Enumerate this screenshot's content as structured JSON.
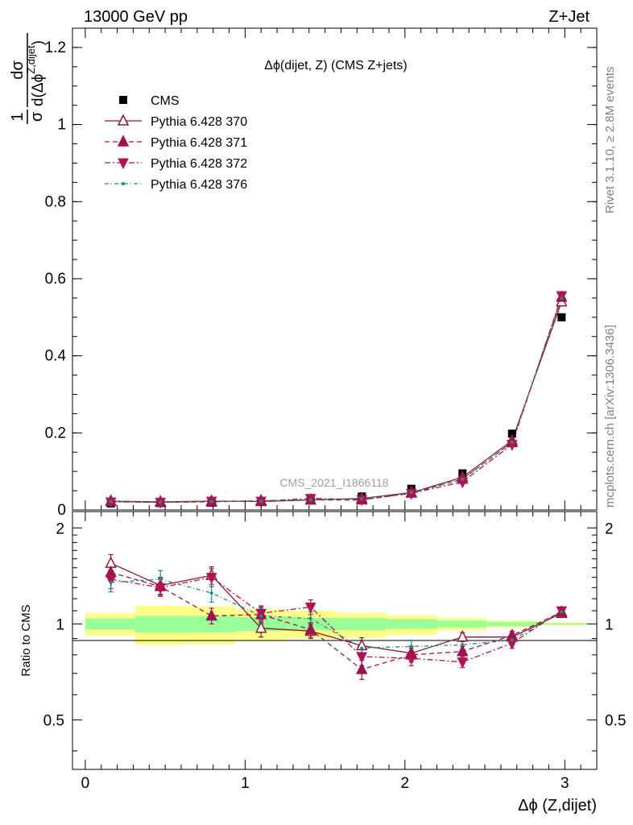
{
  "header": {
    "energy_label": "13000 GeV pp",
    "process_label": "Z+Jet"
  },
  "side_labels": {
    "rivet": "Rivet 3.1.10, ≥ 2.8M events",
    "mcplots": "mcplots.cern.ch [arXiv:1306.3436]"
  },
  "watermark": "CMS_2021_I1866118",
  "colors": {
    "cms": "#000000",
    "p370": "#8b1a2b",
    "p371": "#a0124f",
    "p372": "#b01258",
    "p376": "#1a9080",
    "band_outer": "#ffff88",
    "band_inner": "#99ff99"
  },
  "chart_data": [
    {
      "type": "line",
      "panel": "main",
      "title": "Δϕ(dijet, Z) (CMS Z+jets)",
      "xlabel": "Δϕ (Z,dijet)",
      "ylabel": "1/σ dσ/d(Δϕ^Z,dijet)",
      "xlim": [
        -0.08,
        3.2
      ],
      "ylim": [
        0,
        1.25
      ],
      "xticks": [
        "0",
        "1",
        "2",
        "3"
      ],
      "yticks": [
        "0",
        "0.2",
        "0.4",
        "0.6",
        "0.8",
        "1",
        "1.2"
      ],
      "x": [
        0.16,
        0.47,
        0.79,
        1.1,
        1.41,
        1.73,
        2.04,
        2.36,
        2.67,
        2.98
      ],
      "legend_position": "top-left",
      "series": [
        {
          "name": "CMS",
          "key": "cms",
          "marker": "square",
          "values": [
            0.017,
            0.018,
            0.019,
            0.022,
            0.027,
            0.035,
            0.055,
            0.095,
            0.198,
            0.5
          ]
        },
        {
          "name": "Pythia 6.428 370",
          "key": "p370",
          "marker": "triangle-up-open",
          "line": "solid",
          "values": [
            0.023,
            0.021,
            0.023,
            0.022,
            0.026,
            0.03,
            0.045,
            0.085,
            0.18,
            0.54
          ]
        },
        {
          "name": "Pythia 6.428 371",
          "key": "p371",
          "marker": "triangle-up",
          "line": "dashed",
          "values": [
            0.022,
            0.02,
            0.021,
            0.024,
            0.026,
            0.026,
            0.044,
            0.08,
            0.175,
            0.552
          ]
        },
        {
          "name": "Pythia 6.428 372",
          "key": "p372",
          "marker": "triangle-down",
          "line": "dashdot",
          "values": [
            0.021,
            0.02,
            0.023,
            0.023,
            0.03,
            0.027,
            0.043,
            0.073,
            0.17,
            0.556
          ]
        },
        {
          "name": "Pythia 6.428 376",
          "key": "p376",
          "marker": "dot",
          "line": "dashdot-fine",
          "values": [
            0.022,
            0.02,
            0.022,
            0.023,
            0.026,
            0.03,
            0.046,
            0.08,
            0.176,
            0.55
          ]
        }
      ]
    },
    {
      "type": "line",
      "panel": "ratio",
      "xlabel": "Δϕ (Z,dijet)",
      "ylabel": "Ratio to CMS",
      "xlim": [
        -0.08,
        3.2
      ],
      "ylim": [
        0.35,
        2.25
      ],
      "yticks": [
        "0.5",
        "1",
        "2"
      ],
      "bins": [
        [
          0,
          0.31
        ],
        [
          0.31,
          0.63
        ],
        [
          0.63,
          0.94
        ],
        [
          0.94,
          1.26
        ],
        [
          1.26,
          1.57
        ],
        [
          1.57,
          1.88
        ],
        [
          1.88,
          2.2
        ],
        [
          2.2,
          2.51
        ],
        [
          2.51,
          2.83
        ],
        [
          2.83,
          3.14
        ]
      ],
      "band_outer": [
        [
          0.92,
          1.08
        ],
        [
          0.86,
          1.14
        ],
        [
          0.865,
          1.135
        ],
        [
          0.89,
          1.11
        ],
        [
          0.9,
          1.1
        ],
        [
          0.905,
          1.085
        ],
        [
          0.925,
          1.065
        ],
        [
          0.955,
          1.045
        ],
        [
          0.975,
          1.025
        ],
        [
          0.99,
          1.01
        ]
      ],
      "band_inner": [
        [
          0.96,
          1.04
        ],
        [
          0.94,
          1.06
        ],
        [
          0.94,
          1.06
        ],
        [
          0.95,
          1.05
        ],
        [
          0.955,
          1.045
        ],
        [
          0.955,
          1.045
        ],
        [
          0.965,
          1.035
        ],
        [
          0.975,
          1.025
        ],
        [
          0.985,
          1.015
        ],
        [
          0.995,
          1.005
        ]
      ],
      "series": [
        {
          "name": "Pythia 6.428 370",
          "key": "p370",
          "values": [
            1.55,
            1.32,
            1.42,
            0.97,
            0.95,
            0.855,
            0.81,
            0.91,
            0.91,
            1.08
          ],
          "errors": [
            0.1,
            0.08,
            0.09,
            0.06,
            0.05,
            0.05,
            0.04,
            0.03,
            0.03,
            0.02
          ]
        },
        {
          "name": "Pythia 6.428 371",
          "key": "p371",
          "values": [
            1.45,
            1.31,
            1.06,
            1.07,
            0.96,
            0.72,
            0.8,
            0.82,
            0.92,
            1.09
          ],
          "errors": [
            0.09,
            0.08,
            0.06,
            0.06,
            0.05,
            0.05,
            0.04,
            0.03,
            0.03,
            0.02
          ]
        },
        {
          "name": "Pythia 6.428 372",
          "key": "p372",
          "values": [
            1.38,
            1.3,
            1.4,
            1.08,
            1.13,
            0.79,
            0.78,
            0.76,
            0.87,
            1.1
          ],
          "errors": [
            0.09,
            0.08,
            0.09,
            0.06,
            0.06,
            0.05,
            0.04,
            0.03,
            0.03,
            0.02
          ]
        },
        {
          "name": "Pythia 6.428 376",
          "key": "p376",
          "values": [
            1.35,
            1.38,
            1.25,
            1.06,
            1.04,
            0.84,
            0.85,
            0.86,
            0.89,
            1.09
          ],
          "errors": [
            0.09,
            0.09,
            0.08,
            0.06,
            0.05,
            0.05,
            0.04,
            0.03,
            0.03,
            0.02
          ]
        }
      ]
    }
  ]
}
